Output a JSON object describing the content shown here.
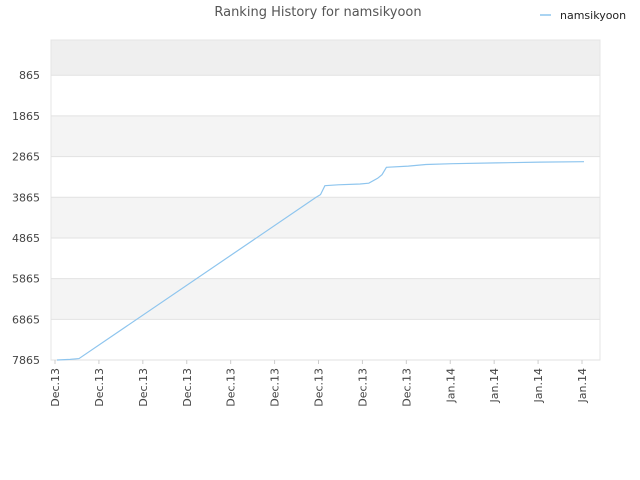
{
  "chart_data": {
    "type": "line",
    "title": "Ranking History for namsikyoon",
    "xlabel": "",
    "ylabel": "",
    "y_inverted": true,
    "ylim": [
      7865,
      0
    ],
    "y_ticks": [
      865,
      1865,
      2865,
      3865,
      4865,
      5865,
      6865,
      7865
    ],
    "x_ticks": [
      "Dec.13",
      "Dec.13",
      "Dec.13",
      "Dec.13",
      "Dec.13",
      "Dec.13",
      "Dec.13",
      "Dec.13",
      "Dec.13",
      "Jan.14",
      "Jan.14",
      "Jan.14",
      "Jan.14"
    ],
    "legend": {
      "position": "top-right",
      "entries": [
        "namsikyoon"
      ]
    },
    "grid": true,
    "series": [
      {
        "name": "namsikyoon",
        "color": "#8ec5ee",
        "x": [
          0.0,
          0.3,
          0.5,
          5.9,
          6.0,
          6.1,
          6.4,
          6.9,
          7.1,
          7.3,
          7.4,
          7.5,
          8.0,
          8.4,
          9.0,
          10.0,
          11.0,
          12.0
        ],
        "values": [
          7865,
          7850,
          7830,
          3865,
          3800,
          3580,
          3560,
          3540,
          3520,
          3400,
          3310,
          3130,
          3100,
          3060,
          3040,
          3020,
          3000,
          2990
        ]
      }
    ]
  }
}
